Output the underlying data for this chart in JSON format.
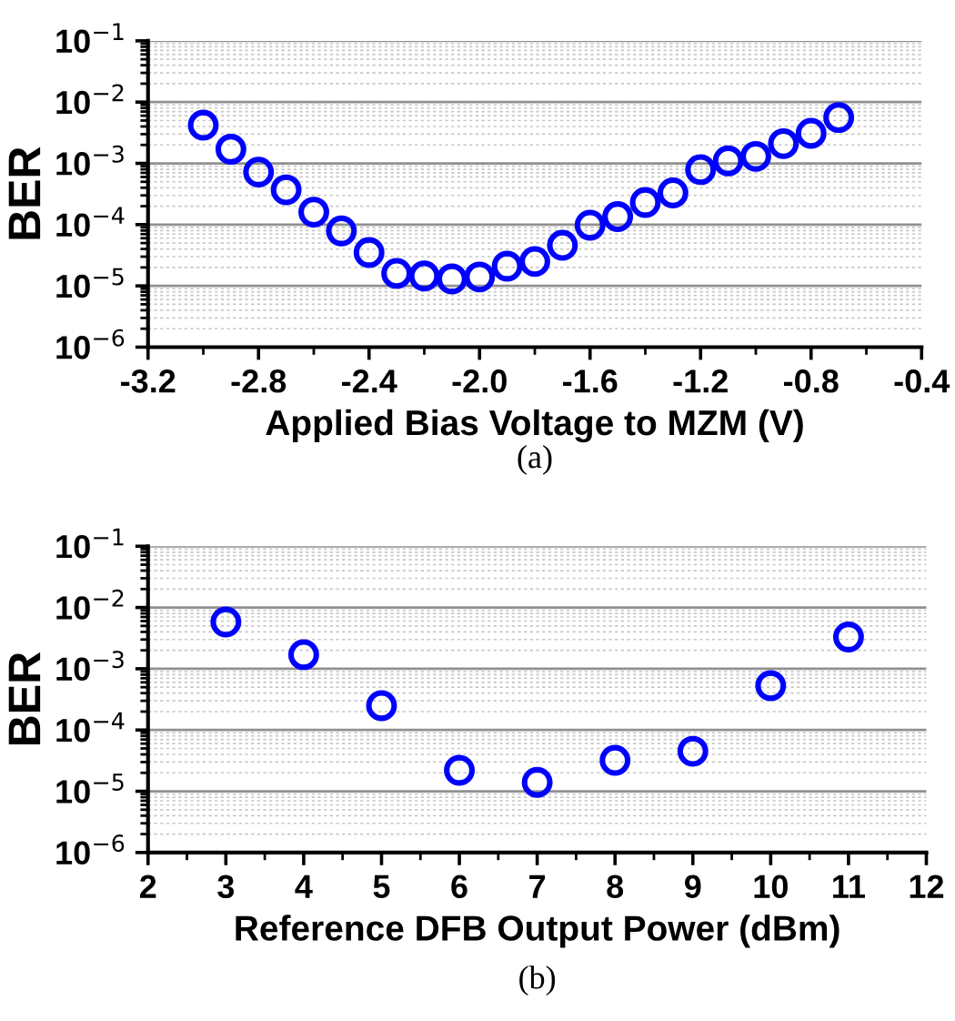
{
  "chart_data": [
    {
      "type": "scatter",
      "xlabel": "Applied Bias Voltage to MZM (V)",
      "ylabel": "BER",
      "annotations": [
        "(a)"
      ],
      "x": [
        -3.0,
        -2.9,
        -2.8,
        -2.7,
        -2.6,
        -2.5,
        -2.4,
        -2.3,
        -2.2,
        -2.1,
        -2.0,
        -1.9,
        -1.8,
        -1.7,
        -1.6,
        -1.5,
        -1.4,
        -1.3,
        -1.2,
        -1.1,
        -1.0,
        -0.9,
        -0.8,
        -0.7
      ],
      "series": [
        {
          "color": "#0000ff",
          "values": [
            0.0042,
            0.0017,
            0.00072,
            0.00037,
            0.00016,
            7.9e-05,
            3.5e-05,
            1.6e-05,
            1.45e-05,
            1.3e-05,
            1.4e-05,
            2.1e-05,
            2.5e-05,
            4.6e-05,
            9.8e-05,
            0.000135,
            0.00023,
            0.00033,
            0.00079,
            0.0011,
            0.0013,
            0.0021,
            0.0031,
            0.0056
          ]
        }
      ],
      "xlim": [
        -3.2,
        -0.4
      ],
      "xticks": [
        -3.2,
        -2.8,
        -2.4,
        {
          "value": -2.0,
          "label": "-2.0"
        },
        -1.6,
        -1.2,
        -0.8,
        -0.4
      ],
      "ylim": [
        1e-06,
        0.1
      ],
      "yticks": [
        {
          "value": 1e-06,
          "label": "10$^{−6}$"
        },
        {
          "value": 1e-05,
          "label": "10$^{−5}$"
        },
        {
          "value": 0.0001,
          "label": "10$^{−4}$"
        },
        {
          "value": 0.001,
          "label": "10$^{−3}$"
        },
        {
          "value": 0.01,
          "label": "10$^{−2}$"
        },
        {
          "value": 0.1,
          "label": "10$^{−1}$"
        }
      ],
      "log": "y",
      "grid": "y",
      "marker": "circle",
      "legend": false
    },
    {
      "type": "scatter",
      "xlabel": "Reference DFB Output Power (dBm)",
      "ylabel": "BER",
      "annotations": [
        "(b)"
      ],
      "x": [
        3,
        4,
        5,
        6,
        7,
        8,
        9,
        10,
        11
      ],
      "series": [
        {
          "color": "#0000ff",
          "values": [
            0.0058,
            0.0017,
            0.00025,
            2.2e-05,
            1.4e-05,
            3.2e-05,
            4.5e-05,
            0.00053,
            0.0033
          ]
        }
      ],
      "xlim": [
        2,
        12
      ],
      "xticks": [
        2,
        3,
        4,
        5,
        6,
        7,
        8,
        9,
        10,
        11,
        12
      ],
      "ylim": [
        1e-06,
        0.1
      ],
      "yticks": [
        {
          "value": 1e-06,
          "label": "10$^{−6}$"
        },
        {
          "value": 1e-05,
          "label": "10$^{−5}$"
        },
        {
          "value": 0.0001,
          "label": "10$^{−4}$"
        },
        {
          "value": 0.001,
          "label": "10$^{−3}$"
        },
        {
          "value": 0.01,
          "label": "10$^{−2}$"
        },
        {
          "value": 0.1,
          "label": "10$^{−1}$"
        }
      ],
      "log": "y",
      "grid": "y",
      "marker": "circle",
      "legend": false
    }
  ]
}
